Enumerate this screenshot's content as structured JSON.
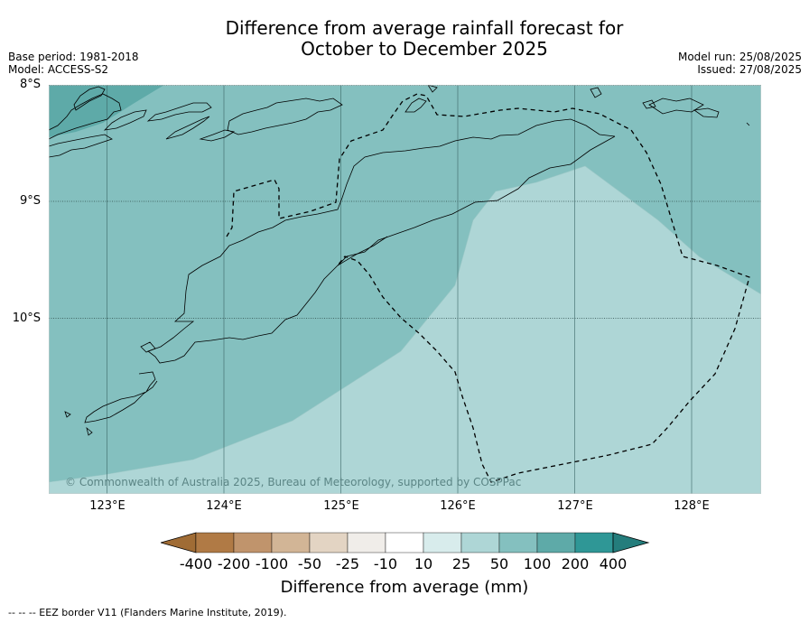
{
  "title": {
    "line1": "Difference from average rainfall forecast for",
    "line2": "October to December 2025"
  },
  "meta_left": {
    "base_period": "Base period: 1981-2018",
    "model": "Model: ACCESS-S2"
  },
  "meta_right": {
    "model_run": "Model run: 25/08/2025",
    "issued": "Issued: 27/08/2025"
  },
  "map": {
    "lat_labels": [
      "8°S",
      "9°S",
      "10°S"
    ],
    "lon_labels": [
      "123°E",
      "124°E",
      "125°E",
      "126°E",
      "127°E",
      "128°E"
    ],
    "credit": "© Commonwealth of Australia 2025, Bureau of Meteorology, supported by COSPPac",
    "zones": [
      {
        "category": "25 to 50",
        "color": "#aed6d6"
      },
      {
        "category": "50 to 100",
        "color": "#84c0bf"
      },
      {
        "category": "100 to 200",
        "color": "#5eaaa8"
      }
    ]
  },
  "colorbar": {
    "title": "Difference from average (mm)",
    "tick_labels": [
      "-400",
      "-200",
      "-100",
      "-50",
      "-25",
      "-10",
      "10",
      "25",
      "50",
      "100",
      "200",
      "400"
    ],
    "colors": [
      "#a06c35",
      "#b07a45",
      "#c0946c",
      "#d2b596",
      "#e3d4c3",
      "#f0ede9",
      "#ffffff",
      "#d8ecec",
      "#aed6d6",
      "#84c0bf",
      "#5eaaa8",
      "#2f9796",
      "#247d7c"
    ]
  },
  "footnote": "--  --  -- EEZ border V11 (Flanders Marine Institute, 2019)."
}
